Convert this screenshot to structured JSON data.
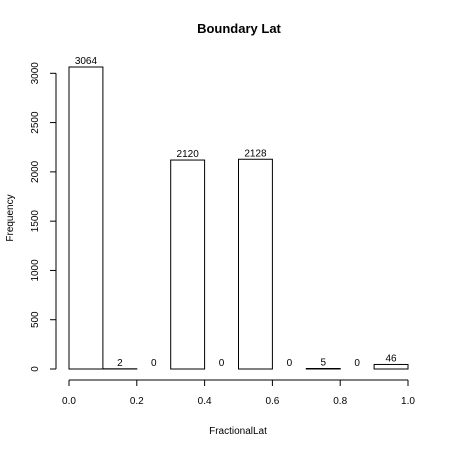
{
  "chart_data": {
    "type": "bar",
    "title": "Boundary Lat",
    "xlabel": "FractionalLat",
    "ylabel": "Frequency",
    "bins": [
      {
        "x0": 0.0,
        "x1": 0.1,
        "value": 3064
      },
      {
        "x0": 0.1,
        "x1": 0.2,
        "value": 2
      },
      {
        "x0": 0.2,
        "x1": 0.3,
        "value": 0
      },
      {
        "x0": 0.3,
        "x1": 0.4,
        "value": 2120
      },
      {
        "x0": 0.4,
        "x1": 0.5,
        "value": 0
      },
      {
        "x0": 0.5,
        "x1": 0.6,
        "value": 2128
      },
      {
        "x0": 0.6,
        "x1": 0.7,
        "value": 0
      },
      {
        "x0": 0.7,
        "x1": 0.8,
        "value": 5
      },
      {
        "x0": 0.8,
        "x1": 0.9,
        "value": 0
      },
      {
        "x0": 0.9,
        "x1": 1.0,
        "value": 46
      }
    ],
    "xlim": [
      0.0,
      1.0
    ],
    "ylim": [
      0,
      3064
    ],
    "xticks": [
      "0.0",
      "0.2",
      "0.4",
      "0.6",
      "0.8",
      "1.0"
    ],
    "yticks": [
      "0",
      "500",
      "1000",
      "1500",
      "2000",
      "2500",
      "3000"
    ],
    "grid": false,
    "legend": "none"
  }
}
